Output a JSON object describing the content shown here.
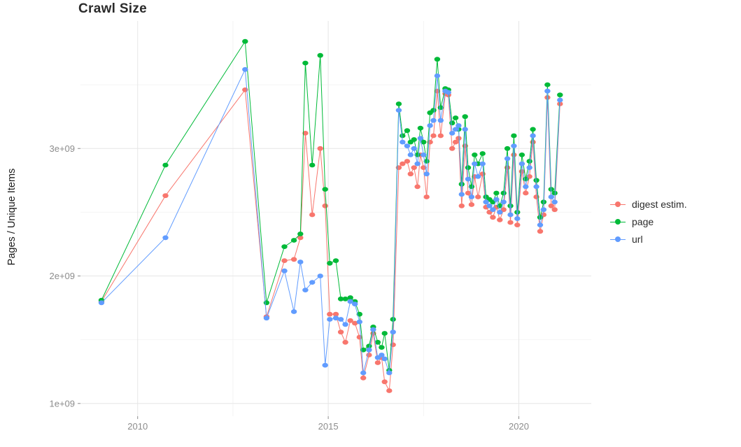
{
  "chart_data": {
    "type": "line",
    "title": "Crawl Size",
    "xlabel": "",
    "ylabel": "Pages / Unique Items",
    "unit": "1e9 (values shown relative to y-axis labels 1e+09 .. 3e+09)",
    "xlim": [
      2008.5,
      2021.9
    ],
    "ylim": [
      0.9,
      4.0
    ],
    "grid": {
      "major_color": "#e6e6e6",
      "minor_color": "#f4f4f4"
    },
    "legend_position": "right",
    "x_ticks": [
      {
        "v": 2010,
        "label": "2010"
      },
      {
        "v": 2015,
        "label": "2015"
      },
      {
        "v": 2020,
        "label": "2020"
      }
    ],
    "y_ticks": [
      {
        "v": 1,
        "label": "1e+09"
      },
      {
        "v": 2,
        "label": "2e+09"
      },
      {
        "v": 3,
        "label": "3e+09"
      }
    ],
    "x_minor": [
      2012.5,
      2017.5
    ],
    "y_minor": [
      1.5,
      2.5,
      3.5
    ],
    "x": [
      2009.05,
      2010.73,
      2012.82,
      2013.38,
      2013.85,
      2014.1,
      2014.27,
      2014.4,
      2014.58,
      2014.79,
      2014.92,
      2015.04,
      2015.2,
      2015.33,
      2015.45,
      2015.58,
      2015.7,
      2015.82,
      2015.92,
      2016.07,
      2016.18,
      2016.3,
      2016.4,
      2016.48,
      2016.6,
      2016.7,
      2016.85,
      2016.95,
      2017.07,
      2017.16,
      2017.25,
      2017.34,
      2017.42,
      2017.5,
      2017.58,
      2017.67,
      2017.76,
      2017.86,
      2017.95,
      2018.07,
      2018.15,
      2018.25,
      2018.34,
      2018.42,
      2018.5,
      2018.59,
      2018.67,
      2018.76,
      2018.84,
      2018.93,
      2019.05,
      2019.14,
      2019.23,
      2019.32,
      2019.41,
      2019.5,
      2019.6,
      2019.7,
      2019.78,
      2019.87,
      2019.96,
      2020.08,
      2020.18,
      2020.28,
      2020.37,
      2020.46,
      2020.56,
      2020.65,
      2020.75,
      2020.85,
      2020.94,
      2021.08
    ],
    "series": [
      {
        "name": "digest estim.",
        "color": "#F8766D",
        "values": [
          1.8,
          2.63,
          3.46,
          1.68,
          2.12,
          2.13,
          2.3,
          3.12,
          2.48,
          3.0,
          2.55,
          1.7,
          1.7,
          1.56,
          1.48,
          1.65,
          1.63,
          1.52,
          1.2,
          1.38,
          1.55,
          1.32,
          1.36,
          1.17,
          1.1,
          1.46,
          2.85,
          2.88,
          2.9,
          2.8,
          2.85,
          2.7,
          2.95,
          2.85,
          2.62,
          3.05,
          3.1,
          3.45,
          3.1,
          3.43,
          3.42,
          3.0,
          3.05,
          3.08,
          2.55,
          3.02,
          2.65,
          2.56,
          2.78,
          2.62,
          2.8,
          2.54,
          2.5,
          2.46,
          2.54,
          2.44,
          2.52,
          2.85,
          2.42,
          2.95,
          2.4,
          2.82,
          2.65,
          2.78,
          3.05,
          2.62,
          2.35,
          2.48,
          3.4,
          2.55,
          2.52,
          3.35
        ]
      },
      {
        "name": "page",
        "color": "#00BA38",
        "values": [
          1.81,
          2.87,
          3.84,
          1.79,
          2.23,
          2.28,
          2.33,
          3.67,
          2.87,
          3.73,
          2.68,
          2.1,
          2.12,
          1.82,
          1.82,
          1.83,
          1.8,
          1.7,
          1.42,
          1.45,
          1.6,
          1.48,
          1.44,
          1.55,
          1.26,
          1.66,
          3.35,
          3.1,
          3.14,
          3.05,
          3.07,
          2.95,
          3.16,
          3.05,
          2.9,
          3.28,
          3.3,
          3.7,
          3.32,
          3.47,
          3.46,
          3.2,
          3.24,
          3.15,
          2.72,
          3.25,
          2.85,
          2.7,
          2.95,
          2.88,
          2.96,
          2.62,
          2.6,
          2.58,
          2.65,
          2.55,
          2.65,
          3.0,
          2.55,
          3.1,
          2.5,
          2.95,
          2.76,
          2.9,
          3.15,
          2.75,
          2.46,
          2.58,
          3.5,
          2.68,
          2.65,
          3.42
        ]
      },
      {
        "name": "url",
        "color": "#619CFF",
        "values": [
          1.79,
          2.3,
          3.62,
          1.67,
          2.04,
          1.72,
          2.11,
          1.89,
          1.95,
          2.0,
          1.3,
          1.66,
          1.67,
          1.66,
          1.62,
          1.8,
          1.78,
          1.64,
          1.24,
          1.42,
          1.58,
          1.36,
          1.38,
          1.35,
          1.24,
          1.56,
          3.3,
          3.05,
          3.02,
          2.95,
          3.0,
          2.88,
          3.08,
          2.95,
          2.8,
          3.18,
          3.22,
          3.57,
          3.22,
          3.45,
          3.44,
          3.12,
          3.15,
          3.18,
          2.64,
          3.15,
          2.76,
          2.62,
          2.88,
          2.78,
          2.88,
          2.58,
          2.55,
          2.52,
          2.6,
          2.5,
          2.58,
          2.92,
          2.48,
          3.02,
          2.45,
          2.88,
          2.7,
          2.85,
          3.1,
          2.7,
          2.4,
          2.52,
          3.45,
          2.62,
          2.58,
          3.38
        ]
      }
    ]
  }
}
